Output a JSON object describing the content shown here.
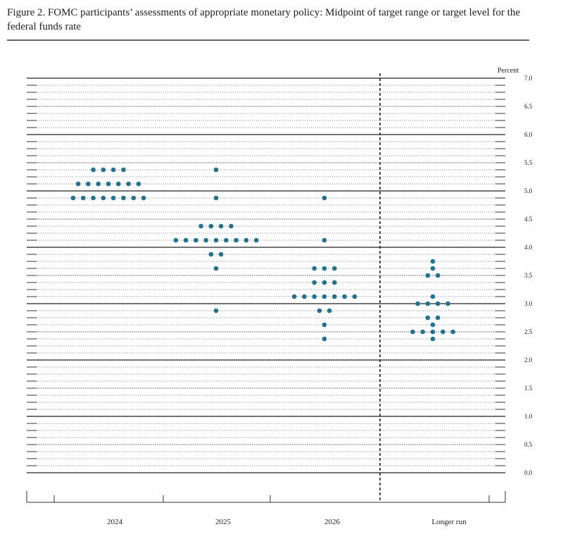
{
  "chart_data": {
    "type": "dot",
    "title": "Figure 2.  FOMC participants’ assessments of appropriate monetary policy:  Midpoint of target range or target level for the federal funds rate",
    "y_label": "Percent",
    "categories": [
      "2024",
      "2025",
      "2026",
      "Longer run"
    ],
    "values": [
      [
        5.375,
        5.375,
        5.375,
        5.375,
        5.125,
        5.125,
        5.125,
        5.125,
        5.125,
        5.125,
        5.125,
        4.875,
        4.875,
        4.875,
        4.875,
        4.875,
        4.875,
        4.875,
        4.875
      ],
      [
        5.375,
        4.875,
        4.375,
        4.375,
        4.375,
        4.375,
        4.125,
        4.125,
        4.125,
        4.125,
        4.125,
        4.125,
        4.125,
        4.125,
        4.125,
        3.875,
        3.875,
        3.625,
        2.875
      ],
      [
        4.875,
        4.125,
        3.625,
        3.625,
        3.625,
        3.375,
        3.375,
        3.375,
        3.125,
        3.125,
        3.125,
        3.125,
        3.125,
        3.125,
        3.125,
        2.875,
        2.875,
        2.625,
        2.375
      ],
      [
        3.75,
        3.625,
        3.5,
        3.5,
        3.125,
        3.0,
        3.0,
        3.0,
        3.0,
        2.75,
        2.75,
        2.625,
        2.5,
        2.5,
        2.5,
        2.5,
        2.5,
        2.375
      ]
    ],
    "color": "#1f7394",
    "ylim": [
      0,
      7
    ],
    "yticks": [
      {
        "value": 0,
        "label": "0.0"
      },
      0.5,
      {
        "value": 1,
        "label": "1.0"
      },
      1.5,
      {
        "value": 2,
        "label": "2.0"
      },
      2.5,
      {
        "value": 3,
        "label": "3.0"
      },
      3.5,
      {
        "value": 4,
        "label": "4.0"
      },
      4.5,
      {
        "value": 5,
        "label": "5.0"
      },
      5.5,
      {
        "value": 6,
        "label": "6.0"
      },
      6.5,
      {
        "value": 7,
        "label": "7.0"
      }
    ],
    "minor_grid_step": 0.125,
    "grid": true
  }
}
